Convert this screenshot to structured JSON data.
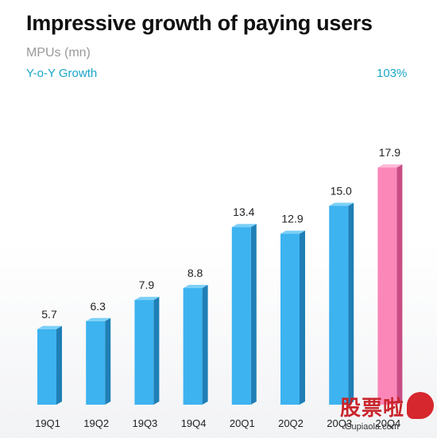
{
  "header": {
    "title": "Impressive growth of paying users",
    "subtitle": "MPUs (mn)",
    "growth_label": "Y-o-Y Growth",
    "growth_value": "103%"
  },
  "colors": {
    "bar": "#3db3f0",
    "bar_top": "#7cd0f7",
    "bar_side": "#1f7fb6",
    "highlight": "#fb87b9",
    "highlight_top": "#fdbad6",
    "highlight_side": "#c94d85"
  },
  "chart_data": {
    "type": "bar",
    "title": "Impressive growth of paying users",
    "ylabel": "MPUs (mn)",
    "categories": [
      "19Q1",
      "19Q2",
      "19Q3",
      "19Q4",
      "20Q1",
      "20Q2",
      "20Q3",
      "20Q4"
    ],
    "values": [
      5.7,
      6.3,
      7.9,
      8.8,
      13.4,
      12.9,
      15.0,
      17.9
    ],
    "value_labels": [
      "5.7",
      "6.3",
      "7.9",
      "8.8",
      "13.4",
      "12.9",
      "15.0",
      "17.9"
    ],
    "highlight_index": 7,
    "ylim": [
      0,
      19
    ],
    "grid": false,
    "legend": "none"
  },
  "watermark": {
    "text": "股票啦",
    "url": "Gupiaola.com"
  }
}
